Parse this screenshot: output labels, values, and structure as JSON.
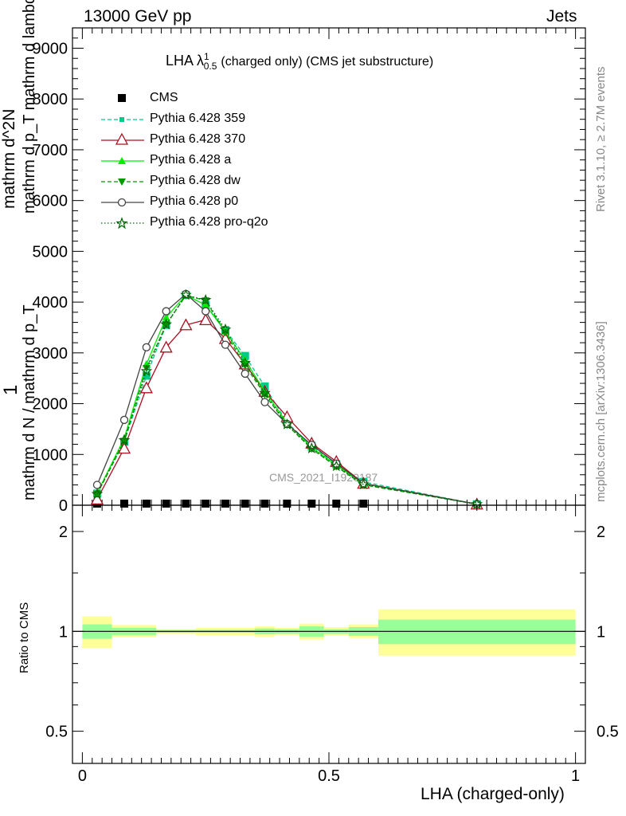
{
  "header": {
    "left": "13000 GeV pp",
    "right": "Jets"
  },
  "side": {
    "rivet": "Rivet 3.1.10, ≥ 2.7M events",
    "mcplots": "mcplots.cern.ch [arXiv:1306.3436]"
  },
  "watermark": "CMS_2021_I1920187",
  "chart_data": [
    {
      "type": "line",
      "title": "LHA λ¹₀.₅ (charged only) (CMS jet substructure)",
      "title_main": "LHA λ",
      "title_sup": "1",
      "title_sub": "0.5",
      "title_rest": "(charged only) (CMS jet substructure)",
      "ylabel_lines": [
        "1",
        "mathrm d N / mathrm d p_T",
        "mathrm d^2N",
        "mathrm d p_T mathrm d lambda"
      ],
      "ylabel": "1 / (mathrm d N / mathrm d p_T) · mathrm d²N / (mathrm d p_T mathrm d lambda)",
      "ylim": [
        0,
        9400
      ],
      "xlim": [
        -0.02,
        1.02
      ],
      "y_ticks": [
        0,
        1000,
        2000,
        3000,
        4000,
        5000,
        6000,
        7000,
        8000,
        9000
      ],
      "y_tick_labels": [
        "0",
        "1000",
        "2000",
        "3000",
        "4000",
        "5000",
        "6000",
        "7000",
        "8000",
        "9000"
      ],
      "x": [
        0.03,
        0.085,
        0.13,
        0.17,
        0.21,
        0.25,
        0.29,
        0.33,
        0.37,
        0.415,
        0.465,
        0.515,
        0.57,
        0.8
      ],
      "series": [
        {
          "name": "CMS",
          "color": "#000000",
          "marker": "square",
          "style": "none",
          "values": [
            15,
            15,
            15,
            15,
            15,
            15,
            15,
            15,
            15,
            15,
            15,
            15,
            15,
            null
          ]
        },
        {
          "name": "Pythia 6.428 359",
          "color": "#00cc88",
          "marker": "square",
          "style": "dashed",
          "values": [
            230,
            1250,
            2550,
            3550,
            4140,
            3940,
            3450,
            2940,
            2340,
            1630,
            1170,
            810,
            460,
            20
          ]
        },
        {
          "name": "Pythia 6.428 370",
          "color": "#aa1122",
          "marker": "triangle-open",
          "style": "solid",
          "values": [
            120,
            1120,
            2310,
            3110,
            3550,
            3650,
            3280,
            2780,
            2240,
            1740,
            1220,
            860,
            430,
            20
          ]
        },
        {
          "name": "Pythia 6.428 a",
          "color": "#00ee00",
          "marker": "triangle",
          "style": "solid",
          "values": [
            240,
            1320,
            2780,
            3700,
            4140,
            3940,
            3420,
            2860,
            2240,
            1620,
            1140,
            790,
            420,
            20
          ]
        },
        {
          "name": "Pythia 6.428 dw",
          "color": "#009900",
          "marker": "triangle-down",
          "style": "dashed",
          "values": [
            220,
            1260,
            2700,
            3560,
            4130,
            4030,
            3400,
            2750,
            2180,
            1580,
            1110,
            760,
            400,
            20
          ]
        },
        {
          "name": "Pythia 6.428 p0",
          "color": "#444444",
          "marker": "circle-open",
          "style": "solid",
          "values": [
            400,
            1680,
            3110,
            3820,
            4160,
            3820,
            3160,
            2590,
            2030,
            1600,
            1190,
            820,
            430,
            20
          ]
        },
        {
          "name": "Pythia 6.428 pro-q2o",
          "color": "#006600",
          "marker": "star",
          "style": "dotted",
          "values": [
            220,
            1280,
            2640,
            3560,
            4140,
            4040,
            3460,
            2800,
            2210,
            1590,
            1120,
            770,
            410,
            20
          ]
        }
      ]
    },
    {
      "type": "area",
      "ylabel": "Ratio to CMS",
      "xlabel": "LHA (charged-only)",
      "xlim": [
        -0.02,
        1.02
      ],
      "ylim": [
        0.4,
        2.4
      ],
      "y_scale": "log",
      "x_ticks": [
        0,
        0.5,
        1
      ],
      "x_tick_labels": [
        "0",
        "0.5",
        "1"
      ],
      "y_ticks": [
        0.5,
        1,
        2
      ],
      "y_tick_labels": [
        "0.5",
        "1",
        "2"
      ],
      "bins": [
        {
          "lo": 0.0,
          "hi": 0.06,
          "inner": [
            0.95,
            1.05
          ],
          "outer": [
            0.89,
            1.11
          ]
        },
        {
          "lo": 0.06,
          "hi": 0.15,
          "inner": [
            0.975,
            1.025
          ],
          "outer": [
            0.96,
            1.045
          ]
        },
        {
          "lo": 0.15,
          "hi": 0.23,
          "inner": [
            0.99,
            1.01
          ],
          "outer": [
            0.985,
            1.015
          ]
        },
        {
          "lo": 0.23,
          "hi": 0.35,
          "inner": [
            0.99,
            1.01
          ],
          "outer": [
            0.975,
            1.025
          ]
        },
        {
          "lo": 0.35,
          "hi": 0.39,
          "inner": [
            0.98,
            1.02
          ],
          "outer": [
            0.965,
            1.035
          ]
        },
        {
          "lo": 0.39,
          "hi": 0.44,
          "inner": [
            0.985,
            1.015
          ],
          "outer": [
            0.975,
            1.025
          ]
        },
        {
          "lo": 0.44,
          "hi": 0.49,
          "inner": [
            0.965,
            1.035
          ],
          "outer": [
            0.945,
            1.055
          ]
        },
        {
          "lo": 0.49,
          "hi": 0.54,
          "inner": [
            0.985,
            1.015
          ],
          "outer": [
            0.97,
            1.03
          ]
        },
        {
          "lo": 0.54,
          "hi": 0.6,
          "inner": [
            0.97,
            1.03
          ],
          "outer": [
            0.955,
            1.05
          ]
        },
        {
          "lo": 0.6,
          "hi": 1.0,
          "inner": [
            0.915,
            1.085
          ],
          "outer": [
            0.845,
            1.165
          ]
        }
      ]
    }
  ],
  "colors": {
    "inner_band": "#99ff99",
    "outer_band": "#ffff99",
    "frame": "#000000",
    "side_text": "#888888",
    "watermark": "#999999"
  }
}
